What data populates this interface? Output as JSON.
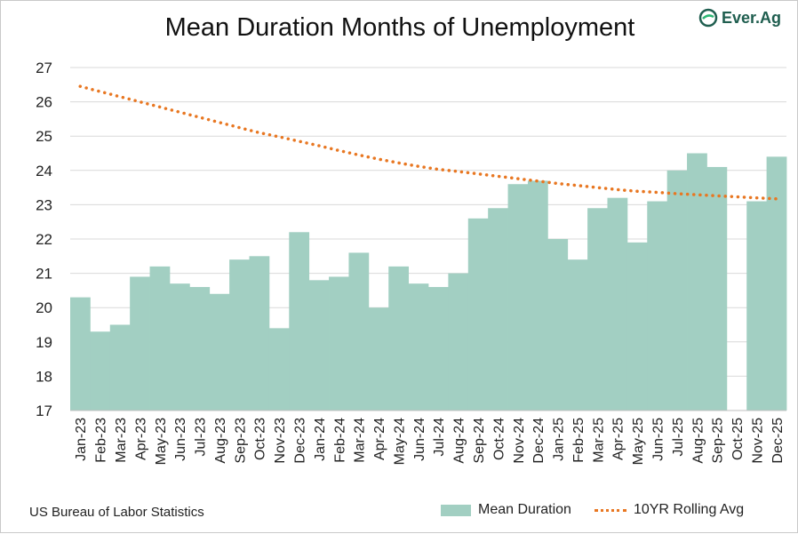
{
  "chart_data": {
    "type": "bar",
    "title": "Mean Duration Months of Unemployment",
    "categories": [
      "Jan-23",
      "Feb-23",
      "Mar-23",
      "Apr-23",
      "May-23",
      "Jun-23",
      "Jul-23",
      "Aug-23",
      "Sep-23",
      "Oct-23",
      "Nov-23",
      "Dec-23",
      "Jan-24",
      "Feb-24",
      "Mar-24",
      "Apr-24",
      "May-24",
      "Jun-24",
      "Jul-24",
      "Aug-24",
      "Sep-24",
      "Oct-24",
      "Nov-24",
      "Dec-24",
      "Jan-25",
      "Feb-25",
      "Mar-25",
      "Apr-25",
      "May-25",
      "Jun-25",
      "Jul-25",
      "Aug-25",
      "Sep-25",
      "Oct-25",
      "Nov-25",
      "Dec-25"
    ],
    "series": [
      {
        "name": "Mean Duration",
        "type": "bar",
        "color": "#a2cfc2",
        "values": [
          20.3,
          19.3,
          19.5,
          20.9,
          21.2,
          20.7,
          20.6,
          20.4,
          21.4,
          21.5,
          19.4,
          22.2,
          20.8,
          20.9,
          21.6,
          20.0,
          21.2,
          20.7,
          20.6,
          21.0,
          22.6,
          22.9,
          23.6,
          23.7,
          22.0,
          21.4,
          22.9,
          23.2,
          21.9,
          23.1,
          24.0,
          24.5,
          24.1,
          null,
          23.1,
          24.4
        ]
      },
      {
        "name": "10YR Rolling Avg",
        "type": "line",
        "style": "dotted",
        "color": "#e87722",
        "values": [
          26.45,
          26.3,
          26.15,
          26.0,
          25.85,
          25.7,
          25.55,
          25.4,
          25.25,
          25.1,
          24.98,
          24.85,
          24.72,
          24.58,
          24.45,
          24.33,
          24.22,
          24.12,
          24.03,
          23.97,
          23.9,
          23.83,
          23.76,
          23.69,
          23.62,
          23.56,
          23.5,
          23.44,
          23.39,
          23.36,
          23.32,
          23.29,
          23.26,
          23.23,
          23.2,
          23.17
        ]
      }
    ],
    "ylim": [
      17,
      27
    ],
    "yticks": [
      17,
      18,
      19,
      20,
      21,
      22,
      23,
      24,
      25,
      26,
      27
    ],
    "xlabel": "",
    "ylabel": "",
    "grid": "horizontal",
    "legend_position": "bottom-right"
  },
  "logo_text": "Ever.Ag",
  "source": "US Bureau of Labor Statistics",
  "legend": {
    "bar_label": "Mean Duration",
    "line_label": "10YR Rolling Avg"
  }
}
